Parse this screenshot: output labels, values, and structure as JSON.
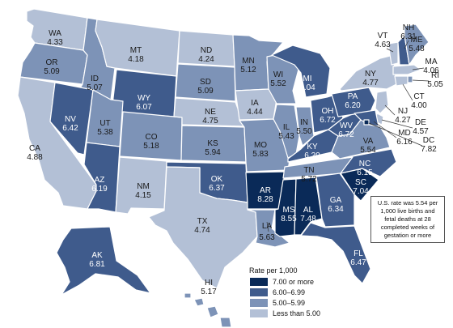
{
  "colors": {
    "bin_1": "#0a2a58",
    "bin_2": "#3f5b8c",
    "bin_3": "#7d93b7",
    "bin_4": "#b3c0d6",
    "border": "#ffffff"
  },
  "note": "U.S. rate was 5.54 per 1,000 live births and fetal deaths at 28 completed weeks of gestation or more",
  "legend": {
    "title": "Rate per 1,000",
    "items": [
      {
        "label": "7.00 or more",
        "color": "#0a2a58"
      },
      {
        "label": "6.00–6.99",
        "color": "#3f5b8c"
      },
      {
        "label": "5.00–5.99",
        "color": "#7d93b7"
      },
      {
        "label": "Less than 5.00",
        "color": "#b3c0d6"
      }
    ]
  },
  "states": [
    {
      "abbr": "WA",
      "value": "4.33"
    },
    {
      "abbr": "OR",
      "value": "5.09"
    },
    {
      "abbr": "CA",
      "value": "4.88"
    },
    {
      "abbr": "ID",
      "value": "5.07"
    },
    {
      "abbr": "NV",
      "value": "6.42"
    },
    {
      "abbr": "MT",
      "value": "4.18"
    },
    {
      "abbr": "WY",
      "value": "6.07"
    },
    {
      "abbr": "UT",
      "value": "5.38"
    },
    {
      "abbr": "AZ",
      "value": "6.19"
    },
    {
      "abbr": "CO",
      "value": "5.18"
    },
    {
      "abbr": "NM",
      "value": "4.15"
    },
    {
      "abbr": "ND",
      "value": "4.24"
    },
    {
      "abbr": "SD",
      "value": "5.09"
    },
    {
      "abbr": "NE",
      "value": "4.75"
    },
    {
      "abbr": "KS",
      "value": "5.94"
    },
    {
      "abbr": "OK",
      "value": "6.37"
    },
    {
      "abbr": "TX",
      "value": "4.74"
    },
    {
      "abbr": "MN",
      "value": "5.12"
    },
    {
      "abbr": "IA",
      "value": "4.44"
    },
    {
      "abbr": "MO",
      "value": "5.83"
    },
    {
      "abbr": "AR",
      "value": "8.28"
    },
    {
      "abbr": "LA",
      "value": "5.63"
    },
    {
      "abbr": "WI",
      "value": "5.52"
    },
    {
      "abbr": "IL",
      "value": "5.43"
    },
    {
      "abbr": "MI",
      "value": "6.04"
    },
    {
      "abbr": "IN",
      "value": "5.50"
    },
    {
      "abbr": "OH",
      "value": "6.72"
    },
    {
      "abbr": "KY",
      "value": "6.20"
    },
    {
      "abbr": "TN",
      "value": "5.72"
    },
    {
      "abbr": "MS",
      "value": "8.55"
    },
    {
      "abbr": "AL",
      "value": "7.48"
    },
    {
      "abbr": "GA",
      "value": "6.34"
    },
    {
      "abbr": "FL",
      "value": "6.47"
    },
    {
      "abbr": "SC",
      "value": "7.04"
    },
    {
      "abbr": "NC",
      "value": "6.15"
    },
    {
      "abbr": "VA",
      "value": "5.54"
    },
    {
      "abbr": "WV",
      "value": "6.72"
    },
    {
      "abbr": "PA",
      "value": "6.20"
    },
    {
      "abbr": "NY",
      "value": "4.77"
    },
    {
      "abbr": "VT",
      "value": "4.63"
    },
    {
      "abbr": "NH",
      "value": "6.31"
    },
    {
      "abbr": "ME",
      "value": "5.48"
    },
    {
      "abbr": "MA",
      "value": "4.06"
    },
    {
      "abbr": "RI",
      "value": "5.05"
    },
    {
      "abbr": "CT",
      "value": "4.00"
    },
    {
      "abbr": "NJ",
      "value": "4.27"
    },
    {
      "abbr": "DE",
      "value": "4.57"
    },
    {
      "abbr": "MD",
      "value": "6.16"
    },
    {
      "abbr": "DC",
      "value": "7.82"
    },
    {
      "abbr": "AK",
      "value": "6.81"
    },
    {
      "abbr": "HI",
      "value": "5.17"
    }
  ]
}
